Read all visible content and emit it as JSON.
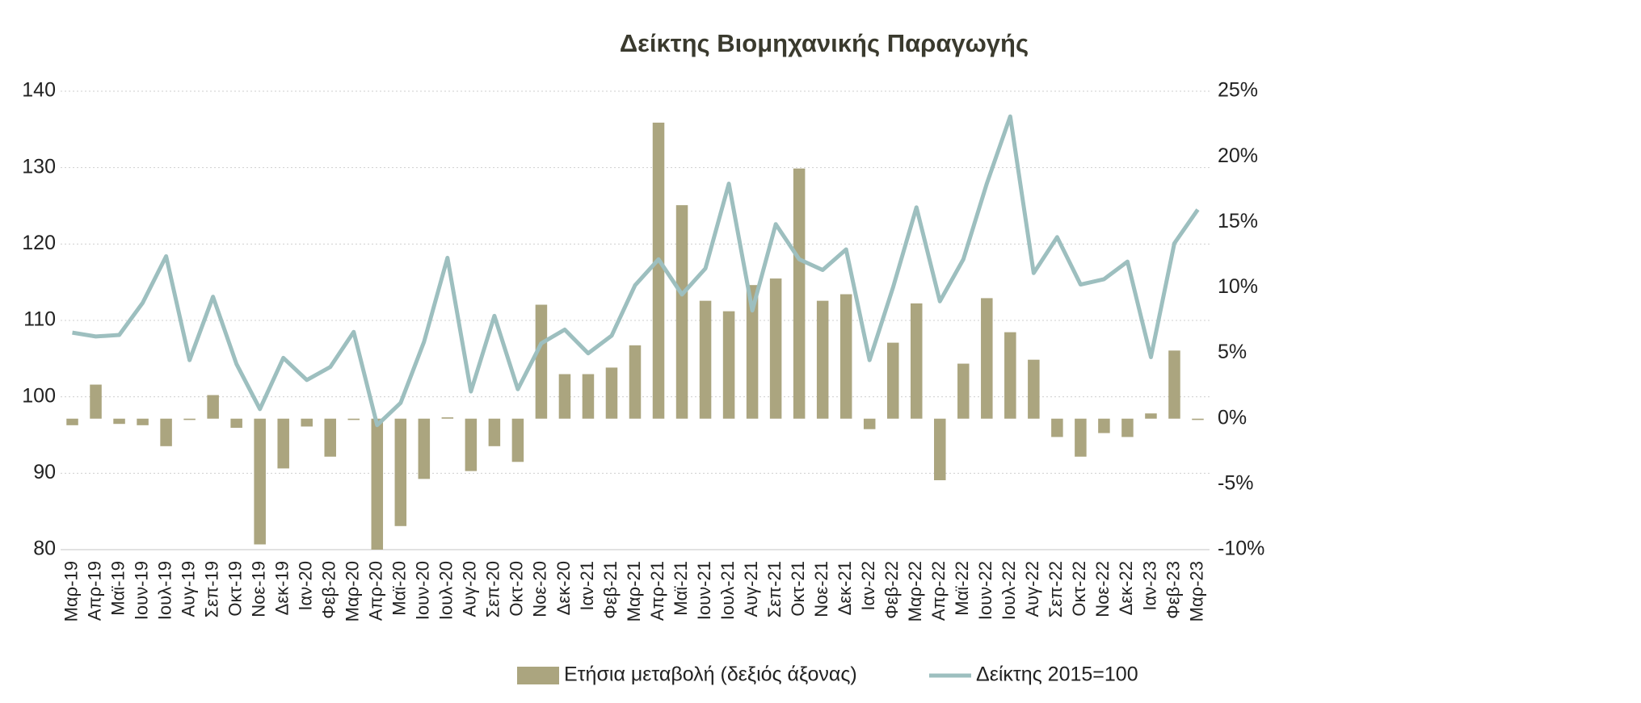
{
  "chart_data": {
    "type": "combo",
    "title": "Δείκτης Βιομηχανικής Παραγωγής",
    "categories": [
      "Μαρ-19",
      "Απρ-19",
      "Μαϊ-19",
      "Ιουν-19",
      "Ιουλ-19",
      "Αυγ-19",
      "Σεπ-19",
      "Οκτ-19",
      "Νοε-19",
      "Δεκ-19",
      "Ιαν-20",
      "Φεβ-20",
      "Μαρ-20",
      "Απρ-20",
      "Μαϊ-20",
      "Ιουν-20",
      "Ιουλ-20",
      "Αυγ-20",
      "Σεπ-20",
      "Οκτ-20",
      "Νοε-20",
      "Δεκ-20",
      "Ιαν-21",
      "Φεβ-21",
      "Μαρ-21",
      "Απρ-21",
      "Μαϊ-21",
      "Ιουν-21",
      "Ιουλ-21",
      "Αυγ-21",
      "Σεπ-21",
      "Οκτ-21",
      "Νοε-21",
      "Δεκ-21",
      "Ιαν-22",
      "Φεβ-22",
      "Μαρ-22",
      "Απρ-22",
      "Μαϊ-22",
      "Ιουν-22",
      "Ιουλ-22",
      "Αυγ-22",
      "Σεπ-22",
      "Οκτ-22",
      "Νοε-22",
      "Δεκ-22",
      "Ιαν-23",
      "Φεβ-23",
      "Μαρ-23"
    ],
    "series": [
      {
        "name": "Ετήσια μεταβολή (δεξιός άξονας)",
        "type": "bar",
        "axis": "y2",
        "color": "#aba57f",
        "values": [
          -0.5,
          2.6,
          -0.4,
          -0.5,
          -2.1,
          -0.1,
          1.8,
          -0.7,
          -9.6,
          -3.8,
          -0.6,
          -2.9,
          -0.1,
          -10,
          -8.2,
          -4.6,
          0.1,
          -4.0,
          -2.1,
          -3.3,
          8.7,
          3.4,
          3.4,
          3.9,
          5.6,
          22.6,
          16.3,
          9.0,
          8.2,
          10.2,
          10.7,
          19.1,
          9.0,
          9.5,
          -0.8,
          5.8,
          8.8,
          -4.7,
          4.2,
          9.2,
          6.6,
          4.5,
          -1.4,
          -2.9,
          -1.1,
          -1.4,
          0.4,
          5.2,
          -0.1
        ]
      },
      {
        "name": "Δείκτης 2015=100",
        "type": "line",
        "axis": "y",
        "color": "#9dbfbf",
        "values": [
          108.4,
          107.9,
          108.1,
          112.3,
          118.4,
          104.8,
          113.1,
          104.3,
          98.4,
          105.1,
          102.2,
          103.9,
          108.5,
          96.3,
          99.2,
          107.2,
          118.2,
          100.7,
          110.6,
          101.0,
          107.0,
          108.8,
          105.7,
          108.0,
          114.6,
          118.0,
          113.4,
          116.8,
          127.9,
          111.3,
          122.6,
          118.0,
          116.6,
          119.3,
          104.8,
          114.3,
          124.8,
          112.5,
          118.0,
          127.9,
          136.7,
          116.2,
          120.9,
          114.7,
          115.4,
          117.7,
          105.2,
          120.1,
          124.5
        ]
      }
    ],
    "ylim": [
      80,
      140
    ],
    "yticks": [
      80,
      90,
      100,
      110,
      120,
      130,
      140
    ],
    "y2lim": [
      -10,
      25
    ],
    "y2ticks": [
      {
        "value": -10,
        "label": "-10%"
      },
      {
        "value": -5,
        "label": "-5%"
      },
      {
        "value": 0,
        "label": "0%"
      },
      {
        "value": 5,
        "label": "5%"
      },
      {
        "value": 10,
        "label": "10%"
      },
      {
        "value": 15,
        "label": "15%"
      },
      {
        "value": 20,
        "label": "20%"
      },
      {
        "value": 25,
        "label": "25%"
      }
    ],
    "grid": true,
    "legend": "bottom"
  }
}
